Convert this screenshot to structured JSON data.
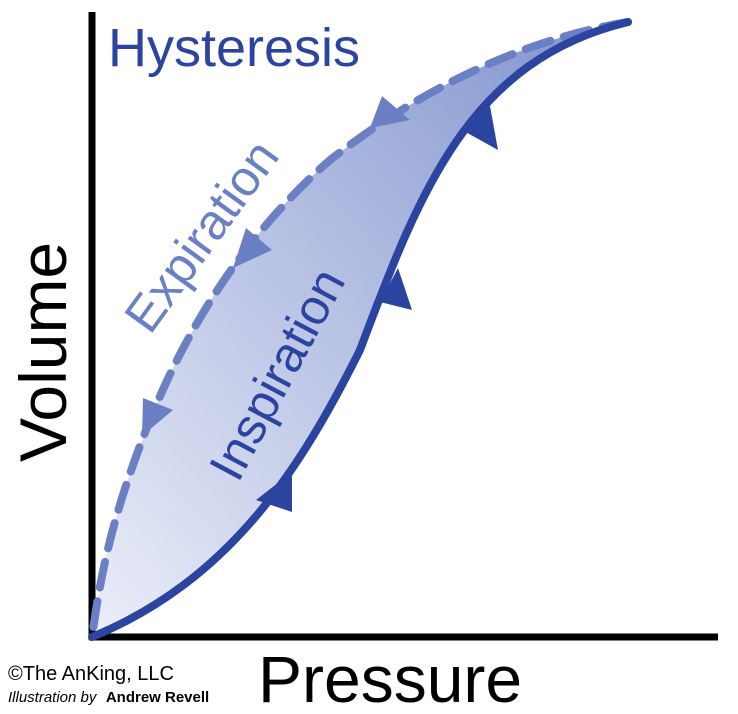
{
  "title": "Hysteresis",
  "axes": {
    "x_label": "Pressure",
    "y_label": "Volume"
  },
  "curves": {
    "expiration": {
      "label": "Expiration",
      "color": "#6a7fc4",
      "style": "dashed"
    },
    "inspiration": {
      "label": "Inspiration",
      "color": "#2b44a0",
      "style": "solid"
    }
  },
  "fill": {
    "from": "#e8ecf8",
    "to": "#6a7fc4"
  },
  "footer": {
    "copyright": "©The AnKing, LLC",
    "credit_prefix": "Illustration by",
    "credit_name": "Andrew Revell"
  },
  "icons": [
    "arrowhead-icon"
  ]
}
